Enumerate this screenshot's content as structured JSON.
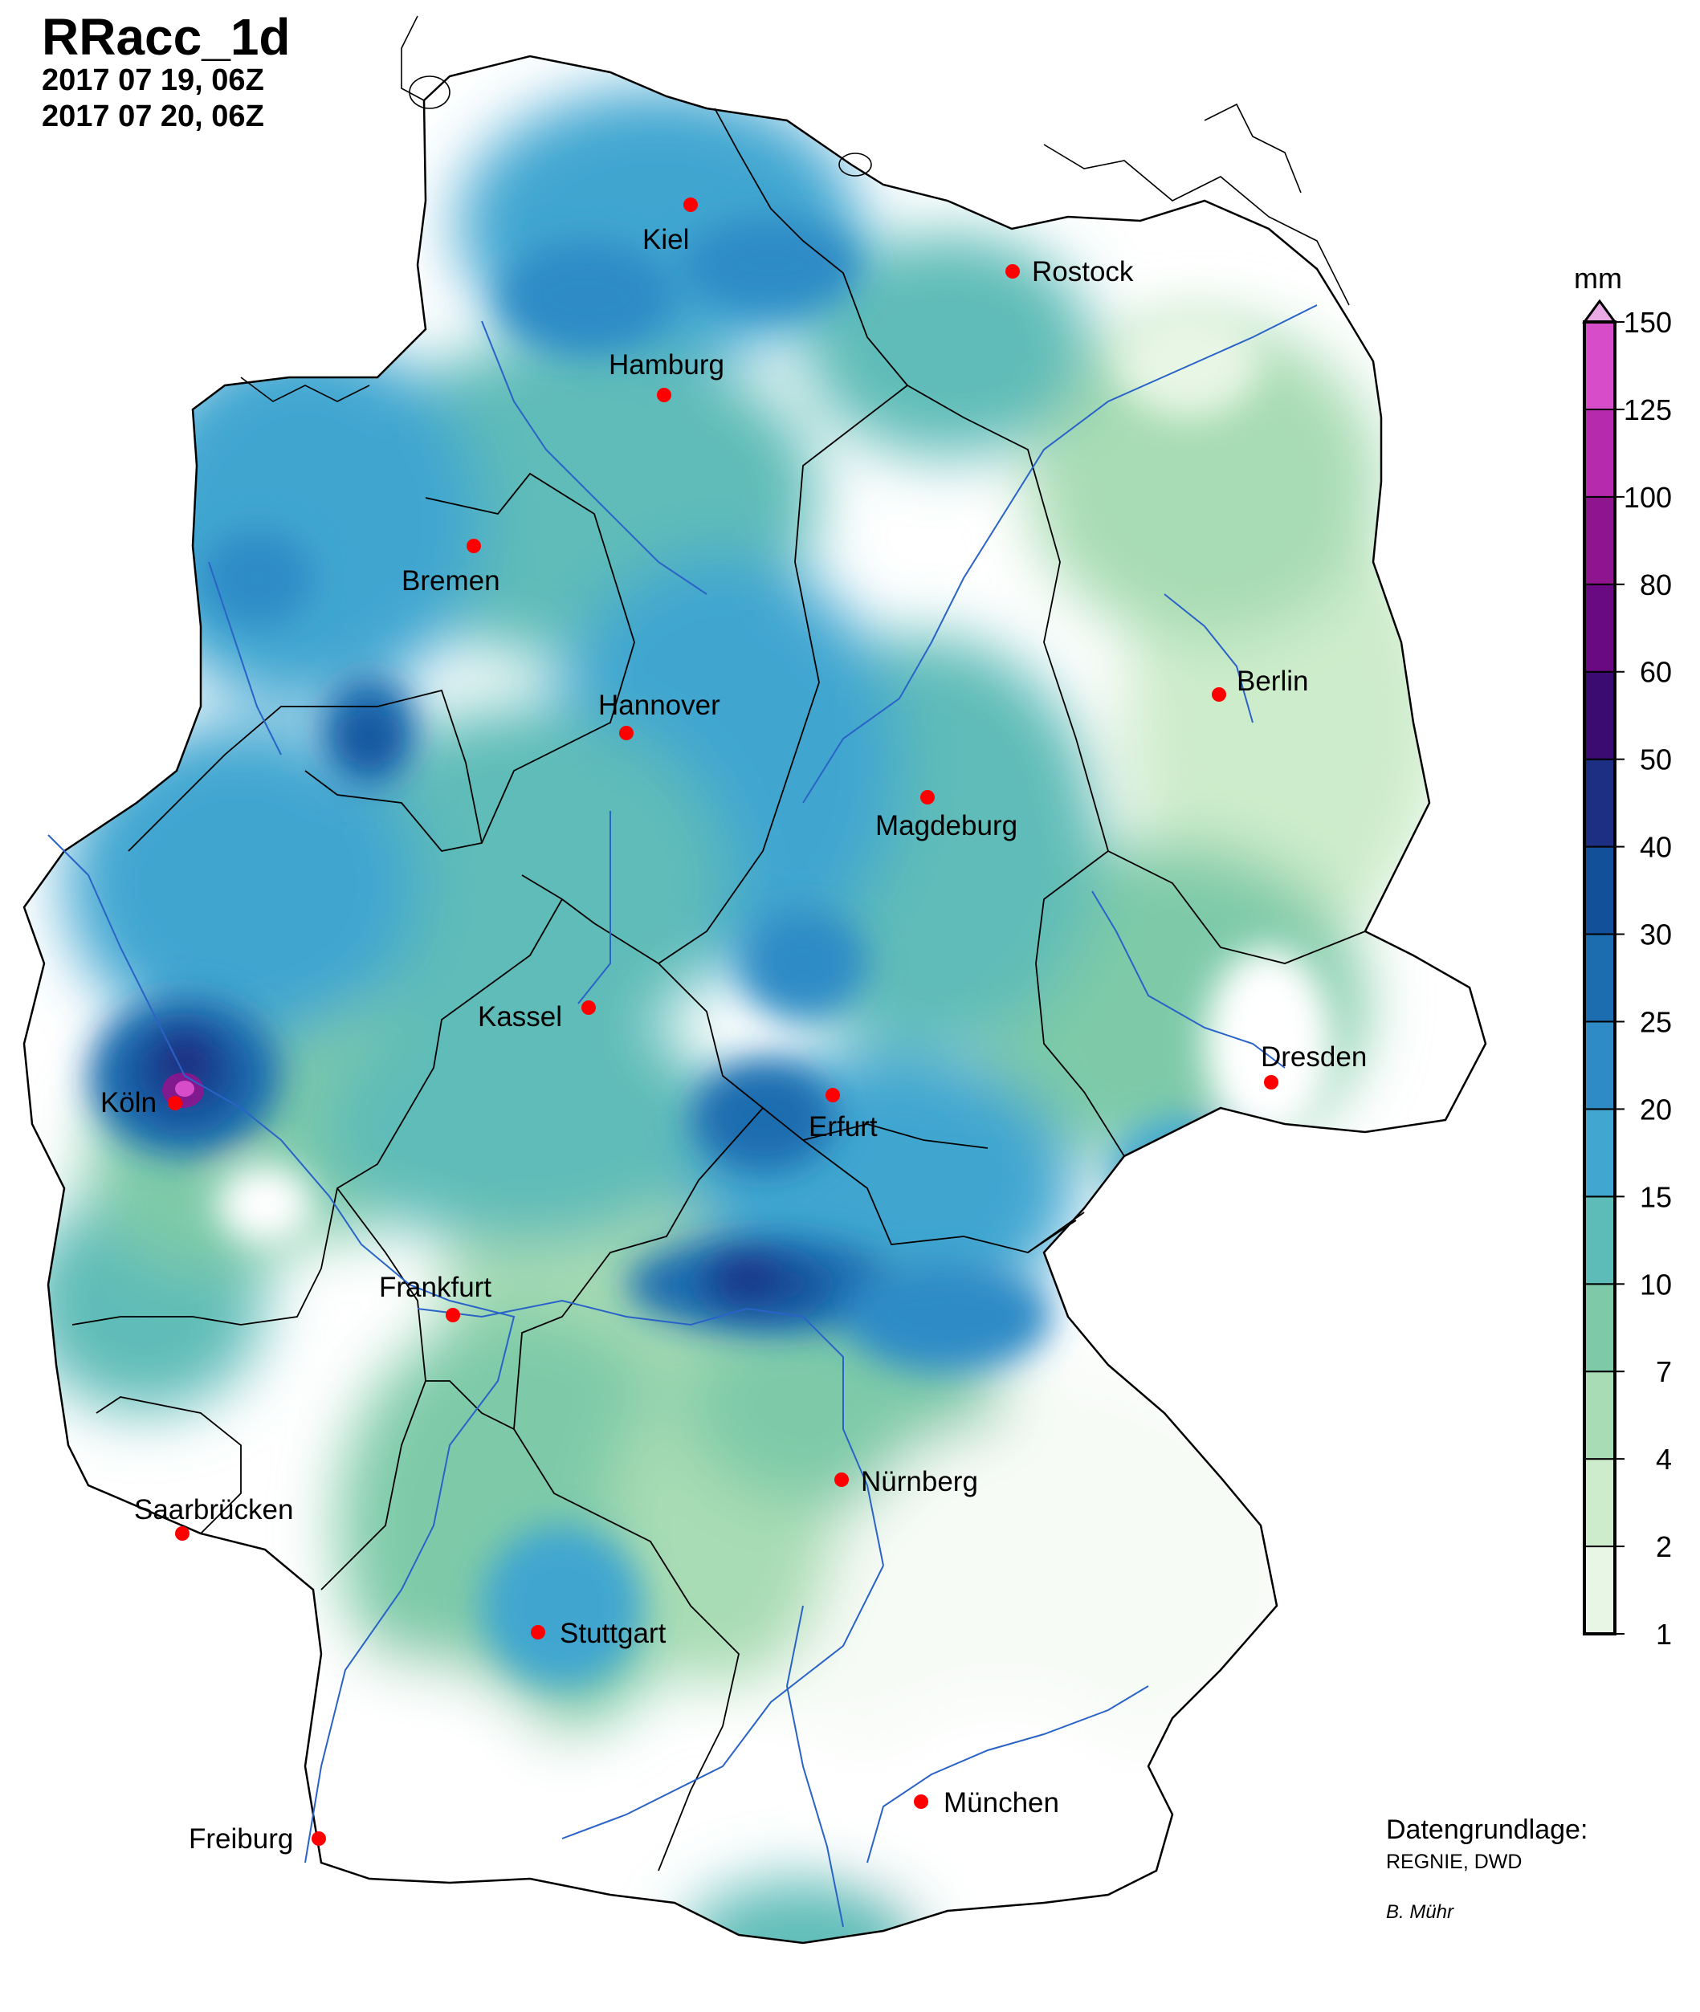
{
  "title": "RRacc_1d",
  "period_start": "2017 07 19, 06Z",
  "period_end": "2017 07 20, 06Z",
  "legend": {
    "unit": "mm",
    "levels": [
      "1",
      "2",
      "4",
      "7",
      "10",
      "15",
      "20",
      "25",
      "30",
      "40",
      "50",
      "60",
      "80",
      "100",
      "125",
      "150"
    ],
    "colors": [
      "#e8f6e5",
      "#cdeccb",
      "#a8dcb4",
      "#7ecaa8",
      "#5ebcb8",
      "#41a6d0",
      "#2f8bc6",
      "#1c6db0",
      "#12509a",
      "#1c2f82",
      "#3c0b72",
      "#6a0a82",
      "#8e158e",
      "#b62aae",
      "#d64cc9"
    ],
    "extend_color": "#e9a9e4"
  },
  "cities": [
    {
      "name": "Kiel"
    },
    {
      "name": "Rostock"
    },
    {
      "name": "Hamburg"
    },
    {
      "name": "Bremen"
    },
    {
      "name": "Hannover"
    },
    {
      "name": "Berlin"
    },
    {
      "name": "Magdeburg"
    },
    {
      "name": "Kassel"
    },
    {
      "name": "Dresden"
    },
    {
      "name": "Köln"
    },
    {
      "name": "Erfurt"
    },
    {
      "name": "Frankfurt"
    },
    {
      "name": "Nürnberg"
    },
    {
      "name": "Saarbrücken"
    },
    {
      "name": "Stuttgart"
    },
    {
      "name": "München"
    },
    {
      "name": "Freiburg"
    }
  ],
  "source": {
    "title": "Datengrundlage:",
    "text": "REGNIE, DWD",
    "author": "B. Mühr"
  }
}
